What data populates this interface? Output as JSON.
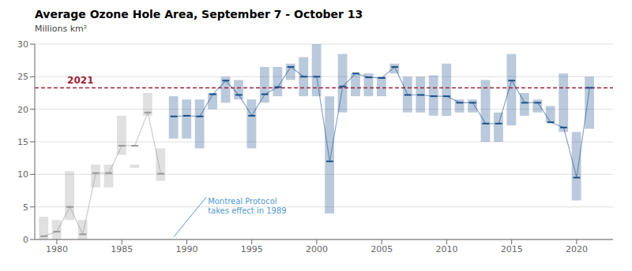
{
  "chart_data": {
    "type": "box",
    "title": "Average Ozone Hole Area, September 7 - October 13",
    "ylabel": "Millions km²",
    "xlim": [
      1978.3,
      2022.8
    ],
    "xticks": [
      1980,
      1985,
      1990,
      1995,
      2000,
      2005,
      2010,
      2015,
      2020
    ],
    "ylim": [
      0,
      30
    ],
    "yticks": [
      0,
      5,
      10,
      15,
      20,
      25,
      30
    ],
    "grid": true,
    "series": [
      {
        "type": "box",
        "color": "#999999",
        "x": [
          1979,
          1980,
          1981,
          1982,
          1983,
          1984,
          1985,
          1986,
          1987,
          1988
        ],
        "median": [
          0.5,
          1.2,
          5.0,
          0.8,
          10.2,
          10.2,
          14.4,
          14.4,
          19.5,
          10.1
        ],
        "box_low": [
          0.0,
          0.0,
          3.0,
          0.0,
          8.0,
          8.0,
          13.0,
          11.0,
          19.0,
          9.0
        ],
        "box_high": [
          3.5,
          3.0,
          10.5,
          3.0,
          11.5,
          11.5,
          19.0,
          11.5,
          22.5,
          14.0
        ]
      },
      {
        "type": "box",
        "color": "#1a4f8a",
        "x": [
          1989,
          1990,
          1991,
          1992,
          1993,
          1994,
          1995,
          1996,
          1997,
          1998,
          1999,
          2000,
          2001,
          2002,
          2003,
          2004,
          2005,
          2006,
          2007,
          2008,
          2009,
          2010,
          2011,
          2012,
          2013,
          2014,
          2015,
          2016,
          2017,
          2018,
          2019,
          2020,
          2021
        ],
        "median": [
          18.9,
          19.0,
          18.9,
          22.3,
          24.4,
          22.2,
          19.0,
          22.3,
          23.4,
          26.5,
          25.0,
          25.0,
          12.0,
          23.5,
          25.5,
          24.9,
          24.8,
          26.5,
          22.2,
          22.2,
          22.0,
          22.0,
          21.0,
          21.0,
          17.8,
          17.8,
          24.4,
          21.0,
          21.0,
          18.0,
          17.2,
          9.5,
          23.3
        ],
        "box_low": [
          15.5,
          15.5,
          14.0,
          20.0,
          21.0,
          21.5,
          14.0,
          21.0,
          22.0,
          24.5,
          22.0,
          22.0,
          4.0,
          19.5,
          22.0,
          22.0,
          22.0,
          25.5,
          19.5,
          19.5,
          19.0,
          19.0,
          19.5,
          19.5,
          15.0,
          15.0,
          17.5,
          19.0,
          19.5,
          18.0,
          16.5,
          6.0,
          17.0
        ],
        "box_high": [
          22.0,
          21.5,
          21.5,
          22.5,
          25.0,
          24.5,
          21.5,
          26.5,
          26.5,
          27.0,
          28.0,
          30.0,
          22.0,
          28.5,
          25.5,
          25.5,
          25.0,
          27.0,
          25.0,
          25.0,
          25.2,
          27.0,
          21.5,
          21.5,
          24.5,
          19.5,
          28.5,
          22.5,
          21.5,
          20.5,
          25.5,
          16.5,
          25.0
        ]
      }
    ],
    "reference_line": {
      "value": 23.3,
      "label": "2021",
      "x": 1980.8,
      "color": "#9b2335",
      "line_style": "dashed"
    },
    "annotations": [
      {
        "text": "Montreal Protocol\ntakes effect in 1989",
        "x": 1991.5,
        "y": 6.5,
        "arrow_x": 1989.0,
        "arrow_y": 0.4,
        "color": "#5599cc"
      }
    ]
  }
}
